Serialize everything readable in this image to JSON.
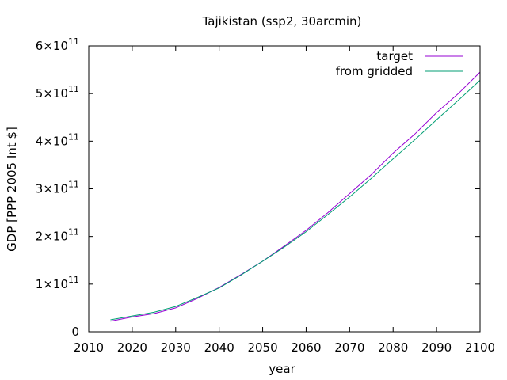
{
  "chart_data": {
    "type": "line",
    "title": "Tajikistan (ssp2, 30arcmin)",
    "xlabel": "year",
    "ylabel": "GDP [PPP 2005 Int $]",
    "xlim": [
      2010,
      2100
    ],
    "ylim": [
      0,
      600000000000.0
    ],
    "x_ticks": [
      2010,
      2020,
      2030,
      2040,
      2050,
      2060,
      2070,
      2080,
      2090,
      2100
    ],
    "x_tick_labels": [
      "2010",
      "2020",
      "2030",
      "2040",
      "2050",
      "2060",
      "2070",
      "2080",
      "2090",
      "2100"
    ],
    "y_ticks": [
      0,
      100000000000.0,
      200000000000.0,
      300000000000.0,
      400000000000.0,
      500000000000.0,
      600000000000.0
    ],
    "y_tick_labels": [
      {
        "mantissa": "0",
        "times": "",
        "exp": ""
      },
      {
        "mantissa": "1",
        "times": "×10",
        "exp": "11"
      },
      {
        "mantissa": "2",
        "times": "×10",
        "exp": "11"
      },
      {
        "mantissa": "3",
        "times": "×10",
        "exp": "11"
      },
      {
        "mantissa": "4",
        "times": "×10",
        "exp": "11"
      },
      {
        "mantissa": "5",
        "times": "×10",
        "exp": "11"
      },
      {
        "mantissa": "6",
        "times": "×10",
        "exp": "11"
      }
    ],
    "grid": false,
    "legend_position": "top-right",
    "series": [
      {
        "name": "target",
        "color": "#9400d3",
        "x": [
          2015,
          2020,
          2025,
          2030,
          2035,
          2040,
          2045,
          2050,
          2055,
          2060,
          2065,
          2070,
          2075,
          2080,
          2085,
          2090,
          2095,
          2100
        ],
        "y": [
          22000000000.0,
          31000000000.0,
          38000000000.0,
          50000000000.0,
          70000000000.0,
          93000000000.0,
          120000000000.0,
          148000000000.0,
          180000000000.0,
          213000000000.0,
          250000000000.0,
          290000000000.0,
          330000000000.0,
          375000000000.0,
          415000000000.0,
          460000000000.0,
          500000000000.0,
          545000000000.0
        ]
      },
      {
        "name": "from gridded",
        "color": "#009e73",
        "x": [
          2015,
          2020,
          2025,
          2030,
          2035,
          2040,
          2045,
          2050,
          2055,
          2060,
          2065,
          2070,
          2075,
          2080,
          2085,
          2090,
          2095,
          2100
        ],
        "y": [
          25000000000.0,
          33000000000.0,
          41000000000.0,
          53000000000.0,
          72000000000.0,
          92000000000.0,
          119000000000.0,
          148000000000.0,
          178000000000.0,
          210000000000.0,
          246000000000.0,
          283000000000.0,
          322000000000.0,
          363000000000.0,
          403000000000.0,
          445000000000.0,
          486000000000.0,
          528000000000.0
        ]
      }
    ]
  }
}
